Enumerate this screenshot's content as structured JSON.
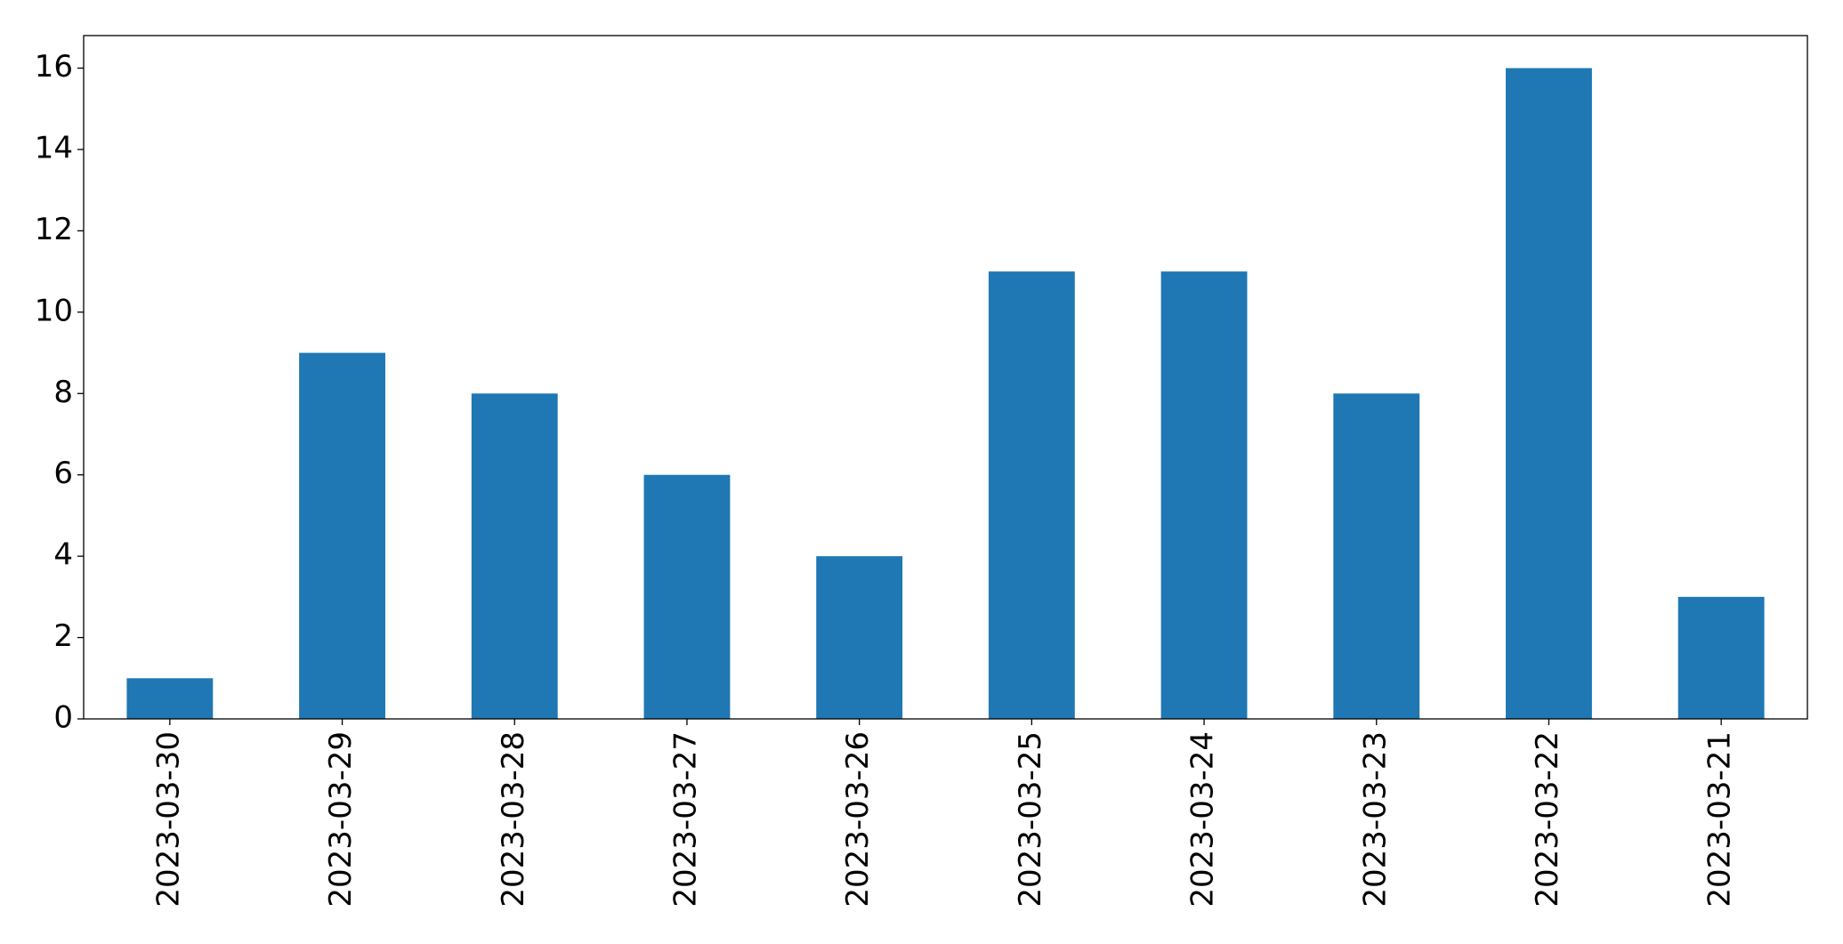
{
  "chart_data": {
    "type": "bar",
    "categories": [
      "2023-03-30",
      "2023-03-29",
      "2023-03-28",
      "2023-03-27",
      "2023-03-26",
      "2023-03-25",
      "2023-03-24",
      "2023-03-23",
      "2023-03-22",
      "2023-03-21"
    ],
    "values": [
      1,
      9,
      8,
      6,
      4,
      11,
      11,
      8,
      16,
      3
    ],
    "color": "#1f77b4",
    "ylim": [
      0,
      16.8
    ],
    "yticks": [
      0,
      2,
      4,
      6,
      8,
      10,
      12,
      14,
      16
    ],
    "grid": false
  }
}
